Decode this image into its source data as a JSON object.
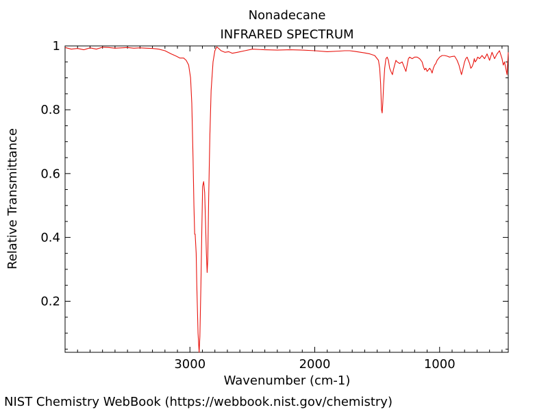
{
  "chart_data": {
    "type": "line",
    "title": "Nonadecane",
    "subtitle": "INFRARED SPECTRUM",
    "xlabel": "Wavenumber (cm-1)",
    "ylabel": "Relative Transmittance",
    "xlim": [
      4000,
      450
    ],
    "ylim": [
      0.04,
      1.0
    ],
    "x_inverted": true,
    "grid": false,
    "x_ticks": [
      {
        "value": 3000,
        "label": "3000"
      },
      {
        "value": 2000,
        "label": "2000"
      },
      {
        "value": 1000,
        "label": "1000"
      }
    ],
    "y_ticks": [
      {
        "value": 0.2,
        "label": "0.2"
      },
      {
        "value": 0.4,
        "label": "0.4"
      },
      {
        "value": 0.6,
        "label": "0.6"
      },
      {
        "value": 0.8,
        "label": "0.8"
      },
      {
        "value": 1.0,
        "label": "1"
      }
    ],
    "line_color": "#e8120c",
    "series": [
      {
        "x": [
          4000,
          3950,
          3900,
          3850,
          3800,
          3750,
          3700,
          3650,
          3600,
          3550,
          3500,
          3450,
          3400,
          3350,
          3300,
          3250,
          3200,
          3150,
          3110,
          3080,
          3050,
          3030,
          3010,
          2995,
          2985,
          2975,
          2968,
          2962,
          2958,
          2950,
          2945,
          2935,
          2926,
          2920,
          2912,
          2905,
          2898,
          2890,
          2882,
          2875,
          2868,
          2862,
          2857,
          2850,
          2840,
          2830,
          2815,
          2800,
          2785,
          2770,
          2750,
          2720,
          2690,
          2660,
          2620,
          2560,
          2500,
          2400,
          2300,
          2200,
          2100,
          2000,
          1900,
          1800,
          1760,
          1720,
          1680,
          1600,
          1560,
          1520,
          1490,
          1480,
          1472,
          1465,
          1460,
          1455,
          1448,
          1440,
          1430,
          1420,
          1410,
          1400,
          1390,
          1378,
          1370,
          1360,
          1350,
          1340,
          1320,
          1300,
          1280,
          1270,
          1260,
          1250,
          1240,
          1220,
          1200,
          1180,
          1160,
          1140,
          1130,
          1120,
          1110,
          1100,
          1090,
          1080,
          1070,
          1060,
          1050,
          1040,
          1030,
          1020,
          1000,
          980,
          960,
          940,
          920,
          900,
          880,
          860,
          845,
          835,
          825,
          815,
          800,
          790,
          780,
          770,
          760,
          750,
          740,
          730,
          722,
          715,
          705,
          695,
          680,
          660,
          640,
          620,
          600,
          580,
          560,
          540,
          520,
          500,
          490,
          480,
          470,
          460,
          455,
          450
        ],
        "values": [
          0.995,
          0.99,
          0.992,
          0.988,
          0.994,
          0.99,
          0.996,
          0.995,
          0.993,
          0.994,
          0.995,
          0.993,
          0.994,
          0.993,
          0.992,
          0.99,
          0.985,
          0.975,
          0.968,
          0.962,
          0.962,
          0.955,
          0.94,
          0.9,
          0.82,
          0.65,
          0.5,
          0.41,
          0.41,
          0.35,
          0.25,
          0.1,
          0.04,
          0.09,
          0.25,
          0.42,
          0.56,
          0.575,
          0.54,
          0.45,
          0.35,
          0.29,
          0.33,
          0.52,
          0.72,
          0.86,
          0.95,
          0.985,
          0.997,
          0.992,
          0.985,
          0.98,
          0.982,
          0.977,
          0.98,
          0.985,
          0.99,
          0.988,
          0.987,
          0.988,
          0.987,
          0.985,
          0.982,
          0.984,
          0.985,
          0.985,
          0.983,
          0.978,
          0.975,
          0.97,
          0.955,
          0.93,
          0.88,
          0.8,
          0.79,
          0.82,
          0.88,
          0.93,
          0.96,
          0.965,
          0.955,
          0.93,
          0.92,
          0.91,
          0.925,
          0.94,
          0.955,
          0.95,
          0.945,
          0.95,
          0.93,
          0.92,
          0.94,
          0.96,
          0.965,
          0.96,
          0.965,
          0.965,
          0.96,
          0.95,
          0.935,
          0.925,
          0.93,
          0.92,
          0.925,
          0.93,
          0.925,
          0.915,
          0.93,
          0.94,
          0.945,
          0.955,
          0.965,
          0.97,
          0.97,
          0.968,
          0.965,
          0.967,
          0.968,
          0.955,
          0.94,
          0.925,
          0.91,
          0.925,
          0.95,
          0.96,
          0.965,
          0.955,
          0.945,
          0.93,
          0.935,
          0.945,
          0.96,
          0.95,
          0.955,
          0.965,
          0.96,
          0.97,
          0.96,
          0.975,
          0.955,
          0.98,
          0.96,
          0.975,
          0.985,
          0.96,
          0.94,
          0.95,
          0.93,
          0.91,
          0.945,
          0.98
        ]
      }
    ]
  },
  "footer": {
    "credit": "NIST Chemistry WebBook (https://webbook.nist.gov/chemistry)"
  }
}
